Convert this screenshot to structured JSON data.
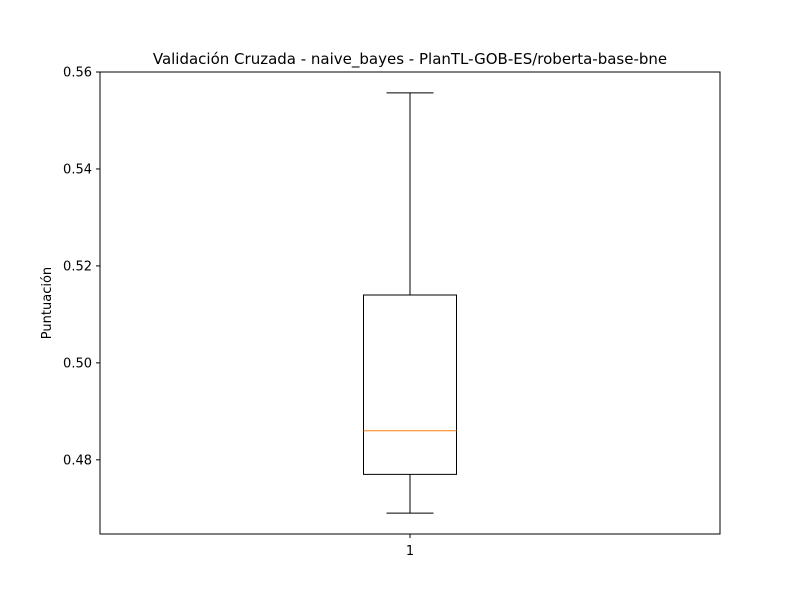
{
  "chart_data": {
    "type": "boxplot",
    "title": "Validación Cruzada - naive_bayes - PlanTL-GOB-ES/roberta-base-bne",
    "xlabel": "",
    "ylabel": "Puntuación",
    "categories": [
      "1"
    ],
    "boxes": [
      {
        "category": "1",
        "whisker_low": 0.469,
        "q1": 0.477,
        "median": 0.486,
        "q3": 0.514,
        "whisker_high": 0.5557
      }
    ],
    "ylim": [
      0.4647,
      0.56
    ],
    "yticks": [
      0.48,
      0.5,
      0.52,
      0.54,
      0.56
    ],
    "ytick_labels": [
      "0.48",
      "0.50",
      "0.52",
      "0.54",
      "0.56"
    ],
    "grid": false,
    "colors": {
      "box": "#000000",
      "median": "#ff7f0e",
      "whisker": "#000000",
      "axes": "#000000"
    }
  }
}
